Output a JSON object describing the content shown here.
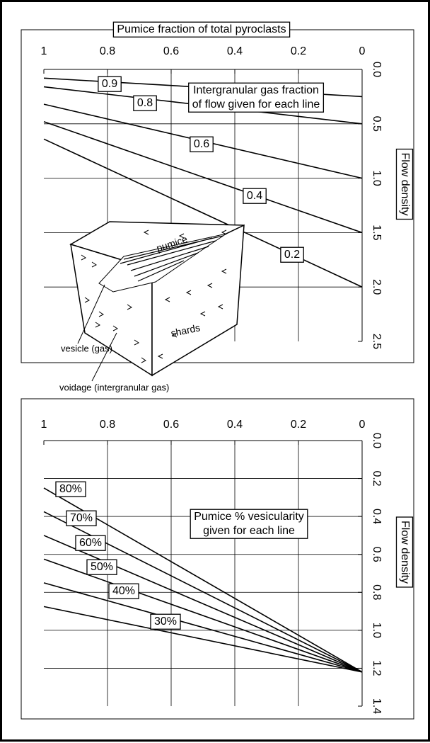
{
  "chart_data": [
    {
      "type": "line",
      "title": "Pumice fraction of total pyroclasts",
      "annotation": [
        "Intergranular gas fraction",
        "of flow given for each line"
      ],
      "ylabel": "Flow density",
      "inset_labels": [
        "pumice",
        "shards",
        "vesicle (gas)",
        "voidage (intergranular gas)"
      ],
      "xlim": [
        1,
        0
      ],
      "ylim": [
        0,
        2.5
      ],
      "xticks": [
        1,
        0.8,
        0.6,
        0.4,
        0.2,
        0
      ],
      "yticks": [
        {
          "value": 0,
          "label": "0.0"
        },
        0.5,
        {
          "value": 1,
          "label": "1.0"
        },
        1.5,
        {
          "value": 2,
          "label": "2.0"
        },
        2.5
      ],
      "grid": true,
      "color": "#000000",
      "x": [
        1,
        0
      ],
      "series": [
        {
          "name": "0.9",
          "values": [
            0.08,
            0.25
          ]
        },
        {
          "name": "0.8",
          "values": [
            0.16,
            0.5
          ]
        },
        {
          "name": "0.6",
          "values": [
            0.32,
            1.0
          ]
        },
        {
          "name": "0.4",
          "values": [
            0.48,
            1.5
          ]
        },
        {
          "name": "0.2",
          "values": [
            0.64,
            2.0
          ]
        }
      ]
    },
    {
      "type": "line",
      "annotation": [
        "Pumice % vesicularity",
        "given for each line"
      ],
      "ylabel": "Flow density",
      "xlim": [
        1,
        0
      ],
      "ylim": [
        0,
        1.4
      ],
      "xticks": [
        1,
        0.8,
        0.6,
        0.4,
        0.2,
        0
      ],
      "yticks": [
        {
          "value": 0,
          "label": "0.0"
        },
        0.2,
        0.4,
        0.6,
        0.8,
        {
          "value": 1,
          "label": "1.0"
        },
        1.2,
        1.4
      ],
      "grid": true,
      "color": "#000000",
      "x": [
        1,
        0
      ],
      "series": [
        {
          "name": "80%",
          "values": [
            0.25,
            1.22
          ]
        },
        {
          "name": "70%",
          "values": [
            0.375,
            1.22
          ]
        },
        {
          "name": "60%",
          "values": [
            0.5,
            1.22
          ]
        },
        {
          "name": "50%",
          "values": [
            0.625,
            1.22
          ]
        },
        {
          "name": "40%",
          "values": [
            0.75,
            1.22
          ]
        },
        {
          "name": "30%",
          "values": [
            0.875,
            1.22
          ]
        }
      ]
    }
  ]
}
